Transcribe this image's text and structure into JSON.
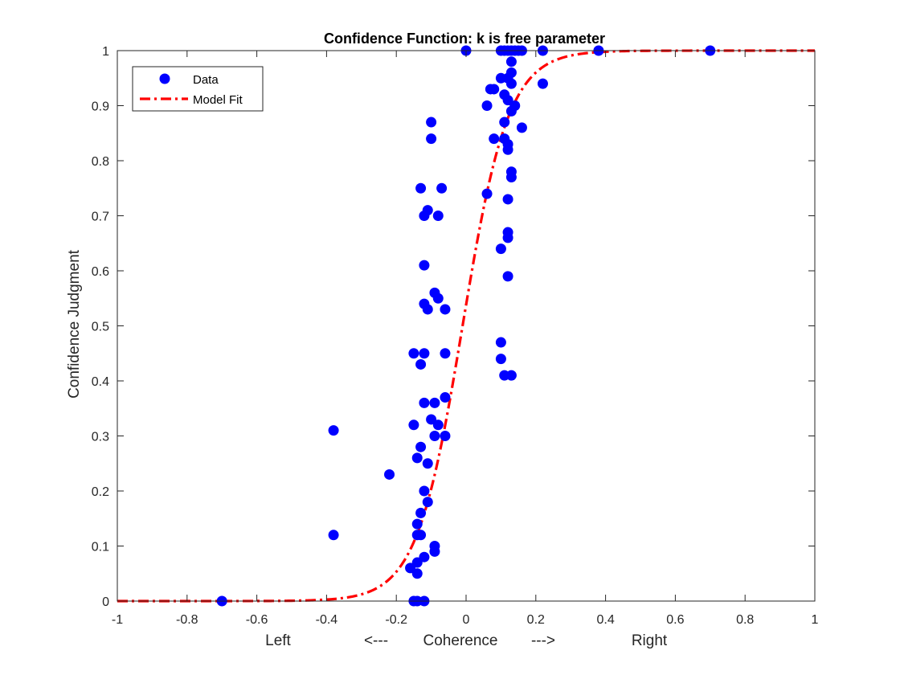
{
  "chart_data": {
    "type": "scatter",
    "title": "Confidence Function: k is free parameter",
    "xlabel_parts": [
      "Left",
      "<---",
      "Coherence",
      "--->",
      "Right"
    ],
    "ylabel": "Confidence Judgment",
    "xlim": [
      -1,
      1
    ],
    "ylim": [
      0,
      1
    ],
    "xticks": [
      -1,
      -0.8,
      -0.6,
      -0.4,
      -0.2,
      0,
      0.2,
      0.4,
      0.6,
      0.8,
      1
    ],
    "xtick_labels": [
      "-1",
      "-0.8",
      "-0.6",
      "-0.4",
      "-0.2",
      "0",
      "0.2",
      "0.4",
      "0.6",
      "0.8",
      "1"
    ],
    "yticks": [
      0,
      0.1,
      0.2,
      0.3,
      0.4,
      0.5,
      0.6,
      0.7,
      0.8,
      0.9,
      1
    ],
    "ytick_labels": [
      "0",
      "0.1",
      "0.2",
      "0.3",
      "0.4",
      "0.5",
      "0.6",
      "0.7",
      "0.8",
      "0.9",
      "1"
    ],
    "grid": false,
    "legend": {
      "placement": "top-left",
      "entries": [
        {
          "name": "Data",
          "marker": "filled-circle",
          "color": "#0000ff"
        },
        {
          "name": "Model Fit",
          "line": "dash-dot",
          "color": "#ff0000"
        }
      ]
    },
    "series": [
      {
        "name": "Data",
        "color": "#0000ff",
        "points": [
          [
            -0.7,
            0.0
          ],
          [
            -0.38,
            0.31
          ],
          [
            -0.38,
            0.12
          ],
          [
            -0.22,
            0.23
          ],
          [
            -0.15,
            0.45
          ],
          [
            -0.15,
            0.32
          ],
          [
            -0.16,
            0.06
          ],
          [
            -0.15,
            0.0
          ],
          [
            -0.14,
            0.0
          ],
          [
            -0.14,
            0.26
          ],
          [
            -0.14,
            0.14
          ],
          [
            -0.14,
            0.12
          ],
          [
            -0.14,
            0.07
          ],
          [
            -0.14,
            0.05
          ],
          [
            -0.13,
            0.75
          ],
          [
            -0.13,
            0.43
          ],
          [
            -0.13,
            0.28
          ],
          [
            -0.13,
            0.16
          ],
          [
            -0.13,
            0.12
          ],
          [
            -0.12,
            0.7
          ],
          [
            -0.12,
            0.61
          ],
          [
            -0.12,
            0.54
          ],
          [
            -0.12,
            0.45
          ],
          [
            -0.12,
            0.36
          ],
          [
            -0.12,
            0.2
          ],
          [
            -0.12,
            0.08
          ],
          [
            -0.12,
            0.0
          ],
          [
            -0.11,
            0.71
          ],
          [
            -0.11,
            0.53
          ],
          [
            -0.11,
            0.25
          ],
          [
            -0.11,
            0.18
          ],
          [
            -0.1,
            0.87
          ],
          [
            -0.1,
            0.84
          ],
          [
            -0.1,
            0.33
          ],
          [
            -0.09,
            0.56
          ],
          [
            -0.09,
            0.36
          ],
          [
            -0.09,
            0.3
          ],
          [
            -0.09,
            0.1
          ],
          [
            -0.09,
            0.09
          ],
          [
            -0.08,
            0.7
          ],
          [
            -0.08,
            0.55
          ],
          [
            -0.08,
            0.32
          ],
          [
            -0.07,
            0.75
          ],
          [
            -0.06,
            0.53
          ],
          [
            -0.06,
            0.45
          ],
          [
            -0.06,
            0.37
          ],
          [
            -0.06,
            0.3
          ],
          [
            0.0,
            1.0
          ],
          [
            0.06,
            0.9
          ],
          [
            0.06,
            0.74
          ],
          [
            0.07,
            0.93
          ],
          [
            0.08,
            0.93
          ],
          [
            0.08,
            0.84
          ],
          [
            0.1,
            0.95
          ],
          [
            0.1,
            0.64
          ],
          [
            0.1,
            0.47
          ],
          [
            0.1,
            0.44
          ],
          [
            0.1,
            1.0
          ],
          [
            0.11,
            0.92
          ],
          [
            0.11,
            0.87
          ],
          [
            0.11,
            0.84
          ],
          [
            0.11,
            0.41
          ],
          [
            0.11,
            1.0
          ],
          [
            0.12,
            0.95
          ],
          [
            0.12,
            0.91
          ],
          [
            0.12,
            0.83
          ],
          [
            0.12,
            0.82
          ],
          [
            0.12,
            0.73
          ],
          [
            0.12,
            0.67
          ],
          [
            0.12,
            0.66
          ],
          [
            0.12,
            0.59
          ],
          [
            0.12,
            1.0
          ],
          [
            0.13,
            0.98
          ],
          [
            0.13,
            0.96
          ],
          [
            0.13,
            0.94
          ],
          [
            0.13,
            0.89
          ],
          [
            0.13,
            0.78
          ],
          [
            0.13,
            0.77
          ],
          [
            0.13,
            0.41
          ],
          [
            0.13,
            1.0
          ],
          [
            0.14,
            0.9
          ],
          [
            0.14,
            1.0
          ],
          [
            0.15,
            1.0
          ],
          [
            0.16,
            0.86
          ],
          [
            0.16,
            1.0
          ],
          [
            0.22,
            0.94
          ],
          [
            0.22,
            1.0
          ],
          [
            0.38,
            1.0
          ],
          [
            0.7,
            1.0
          ]
        ]
      },
      {
        "name": "Model Fit",
        "color": "#ff0000",
        "line_style": "dash-dot",
        "curve": "logistic",
        "midpoint": -0.01,
        "k": 0.066,
        "x_range": [
          -1,
          1
        ]
      }
    ]
  }
}
